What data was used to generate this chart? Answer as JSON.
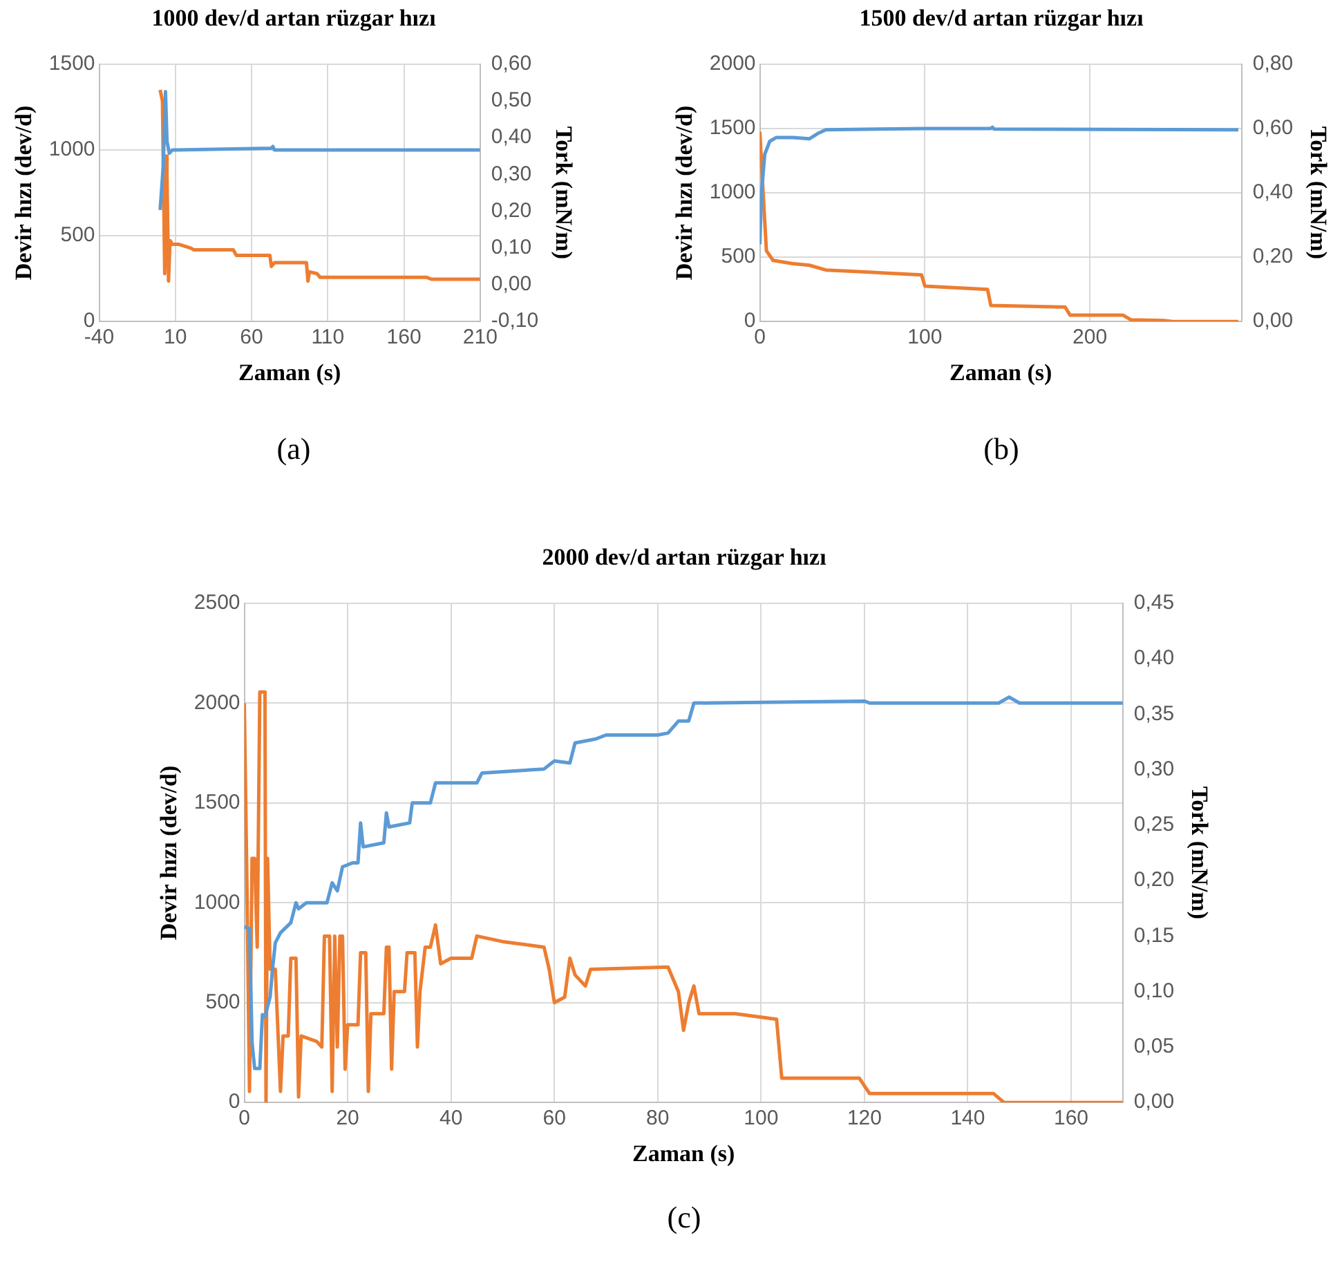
{
  "chart_data": [
    {
      "type": "line",
      "title": "1000 dev/d artan rüzgar hızı",
      "xlabel": "Zaman (s)",
      "ylabel": "Devir hızı (dev/d)",
      "y2label": "Tork (mN/m)",
      "annotations": [
        "(a)"
      ],
      "xlim": [
        -40,
        210
      ],
      "xticks": [
        -40,
        10,
        60,
        110,
        160,
        210
      ],
      "ylim": [
        0,
        1500
      ],
      "yticks": [
        0,
        500,
        1000,
        1500
      ],
      "y2lim": [
        -0.1,
        0.6
      ],
      "y2ticks": [
        {
          "value": -0.1,
          "label": "-0,10"
        },
        {
          "value": 0,
          "label": "0,00"
        },
        {
          "value": 0.1,
          "label": "0,10"
        },
        {
          "value": 0.2,
          "label": "0,20"
        },
        {
          "value": 0.3,
          "label": "0,30"
        },
        {
          "value": 0.4,
          "label": "0,40"
        },
        {
          "value": 0.5,
          "label": "0,50"
        },
        {
          "value": 0.6,
          "label": "0,60"
        }
      ],
      "grid": true,
      "legend": false,
      "marker": "none",
      "line_style": "solid",
      "series": [
        {
          "color": "#5b9bd5",
          "x": [
            0,
            2,
            3.5,
            4.5,
            6,
            8,
            10,
            73,
            74,
            75,
            210
          ],
          "values": [
            650,
            900,
            1340,
            1050,
            980,
            1000,
            1000,
            1010,
            1020,
            1000,
            1000
          ]
        },
        {
          "color": "#ed7d31",
          "axis": "y2",
          "x": [
            0,
            1.5,
            3,
            4,
            4.5,
            5.5,
            6.5,
            8,
            12,
            20,
            22,
            48,
            50,
            72,
            73,
            75,
            96,
            97,
            98,
            103,
            105,
            175,
            178,
            210
          ],
          "values": [
            0.53,
            0.5,
            0.03,
            0.35,
            0.3,
            0.01,
            0.12,
            0.11,
            0.11,
            0.1,
            0.095,
            0.095,
            0.08,
            0.08,
            0.05,
            0.06,
            0.06,
            0.01,
            0.035,
            0.03,
            0.02,
            0.02,
            0.015,
            0.015
          ]
        }
      ]
    },
    {
      "type": "line",
      "title": "1500 dev/d artan rüzgar hızı",
      "xlabel": "Zaman (s)",
      "ylabel": "Devir hızı (dev/d)",
      "y2label": "Tork (mN/m)",
      "annotations": [
        "(b)"
      ],
      "xlim": [
        0,
        292
      ],
      "xticks": [
        0,
        100,
        200
      ],
      "ylim": [
        0,
        2000
      ],
      "yticks": [
        0,
        500,
        1000,
        1500,
        2000
      ],
      "y2lim": [
        0,
        0.8
      ],
      "y2ticks": [
        {
          "value": 0,
          "label": "0,00"
        },
        {
          "value": 0.2,
          "label": "0,20"
        },
        {
          "value": 0.4,
          "label": "0,40"
        },
        {
          "value": 0.6,
          "label": "0,60"
        },
        {
          "value": 0.8,
          "label": "0,80"
        }
      ],
      "grid": true,
      "legend": false,
      "marker": "none",
      "line_style": "solid",
      "series": [
        {
          "color": "#5b9bd5",
          "x": [
            0,
            1,
            3,
            6,
            10,
            20,
            30,
            35,
            40,
            100,
            140,
            141,
            142,
            290
          ],
          "values": [
            600,
            1000,
            1300,
            1400,
            1430,
            1430,
            1420,
            1460,
            1490,
            1500,
            1500,
            1510,
            1495,
            1490
          ]
        },
        {
          "color": "#ed7d31",
          "axis": "y2",
          "x": [
            0,
            2,
            4,
            8,
            20,
            30,
            40,
            60,
            98,
            100,
            138,
            140,
            185,
            188,
            220,
            225,
            245,
            250,
            290
          ],
          "values": [
            0.59,
            0.4,
            0.22,
            0.19,
            0.18,
            0.175,
            0.16,
            0.155,
            0.145,
            0.11,
            0.1,
            0.05,
            0.045,
            0.02,
            0.02,
            0.005,
            0.003,
            0,
            0
          ]
        }
      ]
    },
    {
      "type": "line",
      "title": "2000 dev/d artan rüzgar hızı",
      "xlabel": "Zaman (s)",
      "ylabel": "Devir hızı (dev/d)",
      "y2label": "Tork (mN/m)",
      "annotations": [
        "(c)"
      ],
      "xlim": [
        0,
        170
      ],
      "xticks": [
        0,
        20,
        40,
        60,
        80,
        100,
        120,
        140,
        160
      ],
      "ylim": [
        0,
        2500
      ],
      "yticks": [
        0,
        500,
        1000,
        1500,
        2000,
        2500
      ],
      "y2lim": [
        0,
        0.45
      ],
      "y2ticks": [
        {
          "value": 0,
          "label": "0,00"
        },
        {
          "value": 0.05,
          "label": "0,05"
        },
        {
          "value": 0.1,
          "label": "0,10"
        },
        {
          "value": 0.15,
          "label": "0,15"
        },
        {
          "value": 0.2,
          "label": "0,20"
        },
        {
          "value": 0.25,
          "label": "0,25"
        },
        {
          "value": 0.3,
          "label": "0,30"
        },
        {
          "value": 0.35,
          "label": "0,35"
        },
        {
          "value": 0.4,
          "label": "0,40"
        },
        {
          "value": 0.45,
          "label": "0,45"
        }
      ],
      "grid": true,
      "legend": false,
      "marker": "none",
      "line_style": "solid",
      "series": [
        {
          "color": "#5b9bd5",
          "x": [
            0,
            1,
            1.5,
            2,
            3,
            3.5,
            4,
            5,
            5.5,
            6,
            7,
            9,
            10,
            10.5,
            12,
            16,
            17,
            18,
            19,
            21,
            22,
            22.5,
            23,
            27,
            27.5,
            28,
            32,
            32.5,
            36,
            37,
            45,
            46,
            58,
            60,
            63,
            64,
            68,
            70,
            80,
            82,
            84,
            86,
            87,
            120,
            121,
            146,
            148,
            150,
            170
          ],
          "values": [
            880,
            870,
            300,
            170,
            170,
            440,
            430,
            530,
            680,
            800,
            850,
            900,
            1000,
            970,
            1000,
            1000,
            1100,
            1060,
            1180,
            1200,
            1200,
            1400,
            1280,
            1300,
            1450,
            1380,
            1400,
            1500,
            1500,
            1600,
            1600,
            1650,
            1670,
            1710,
            1700,
            1800,
            1820,
            1840,
            1840,
            1850,
            1910,
            1910,
            2000,
            2010,
            2000,
            2000,
            2030,
            2000,
            2000
          ]
        },
        {
          "color": "#ed7d31",
          "axis": "y2",
          "x": [
            0,
            0.5,
            1,
            1.5,
            2,
            2.5,
            3,
            4,
            4.2,
            4.5,
            5,
            6,
            7,
            7.5,
            8.5,
            9,
            10,
            10.5,
            11,
            14,
            15,
            15.5,
            16.5,
            17,
            17.5,
            18,
            18.5,
            19,
            19.5,
            20,
            22,
            22.5,
            23.5,
            24,
            24.5,
            27,
            27.5,
            28,
            28.5,
            29,
            31,
            31.5,
            33,
            33.5,
            34,
            35,
            36,
            37,
            38,
            40,
            44,
            45,
            50,
            58,
            59,
            60,
            62,
            63,
            64,
            66,
            67,
            82,
            84,
            85,
            86,
            87,
            88,
            95,
            103,
            104,
            119,
            121,
            145,
            147,
            170
          ],
          "values": [
            0.36,
            0.2,
            0.01,
            0.22,
            0.22,
            0.14,
            0.37,
            0.37,
            0,
            0.22,
            0.12,
            0.12,
            0.01,
            0.06,
            0.06,
            0.13,
            0.13,
            0.005,
            0.06,
            0.055,
            0.05,
            0.15,
            0.15,
            0.01,
            0.15,
            0.05,
            0.15,
            0.15,
            0.03,
            0.07,
            0.07,
            0.135,
            0.135,
            0.01,
            0.08,
            0.08,
            0.14,
            0.14,
            0.03,
            0.1,
            0.1,
            0.135,
            0.135,
            0.05,
            0.1,
            0.14,
            0.14,
            0.16,
            0.125,
            0.13,
            0.13,
            0.15,
            0.145,
            0.14,
            0.12,
            0.09,
            0.095,
            0.13,
            0.115,
            0.105,
            0.12,
            0.122,
            0.1,
            0.065,
            0.09,
            0.105,
            0.08,
            0.08,
            0.075,
            0.022,
            0.022,
            0.008,
            0.008,
            0,
            0
          ]
        }
      ]
    }
  ]
}
